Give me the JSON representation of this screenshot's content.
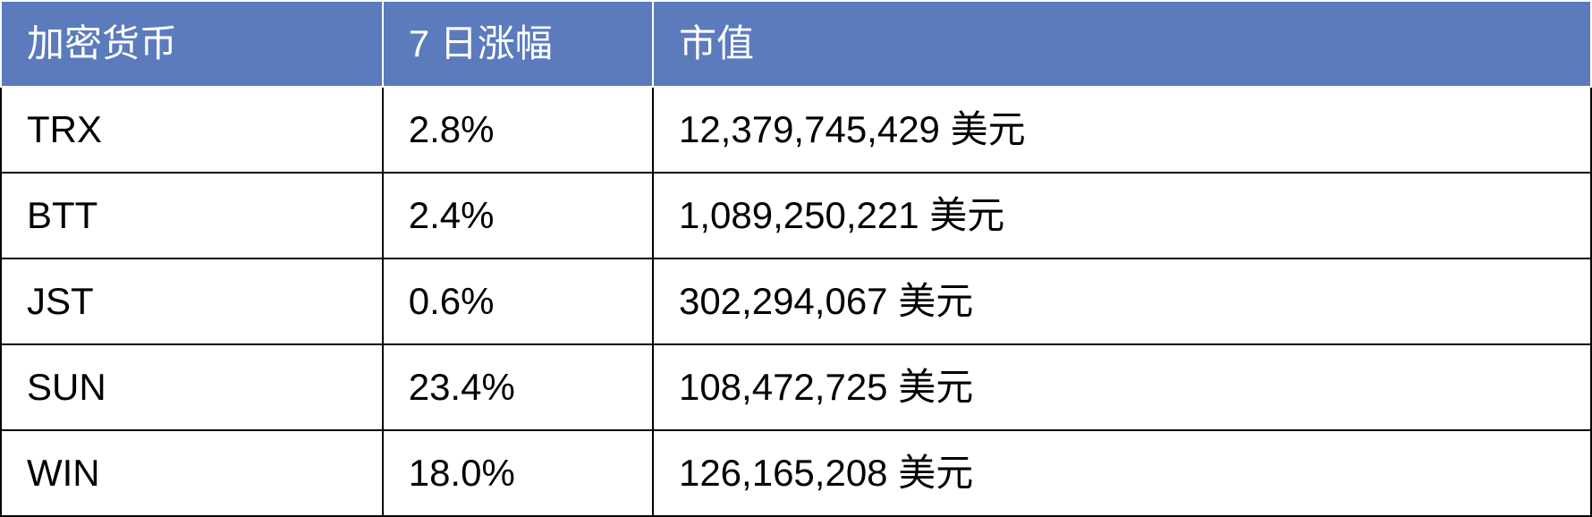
{
  "table": {
    "type": "table",
    "header_background_color": "#5b7bbd",
    "header_text_color": "#ffffff",
    "cell_text_color": "#000000",
    "header_border_color": "#ffffff",
    "body_border_color": "#000000",
    "font_size_pt": 32,
    "column_widths_pct": [
      24,
      17,
      59
    ],
    "columns": [
      "加密货币",
      "7 日涨幅",
      "市值"
    ],
    "rows": [
      [
        "TRX",
        "2.8%",
        "12,379,745,429 美元"
      ],
      [
        "BTT",
        "2.4%",
        "1,089,250,221 美元"
      ],
      [
        "JST",
        "0.6%",
        "302,294,067 美元"
      ],
      [
        "SUN",
        "23.4%",
        "108,472,725 美元"
      ],
      [
        "WIN",
        "18.0%",
        "126,165,208 美元"
      ]
    ]
  }
}
